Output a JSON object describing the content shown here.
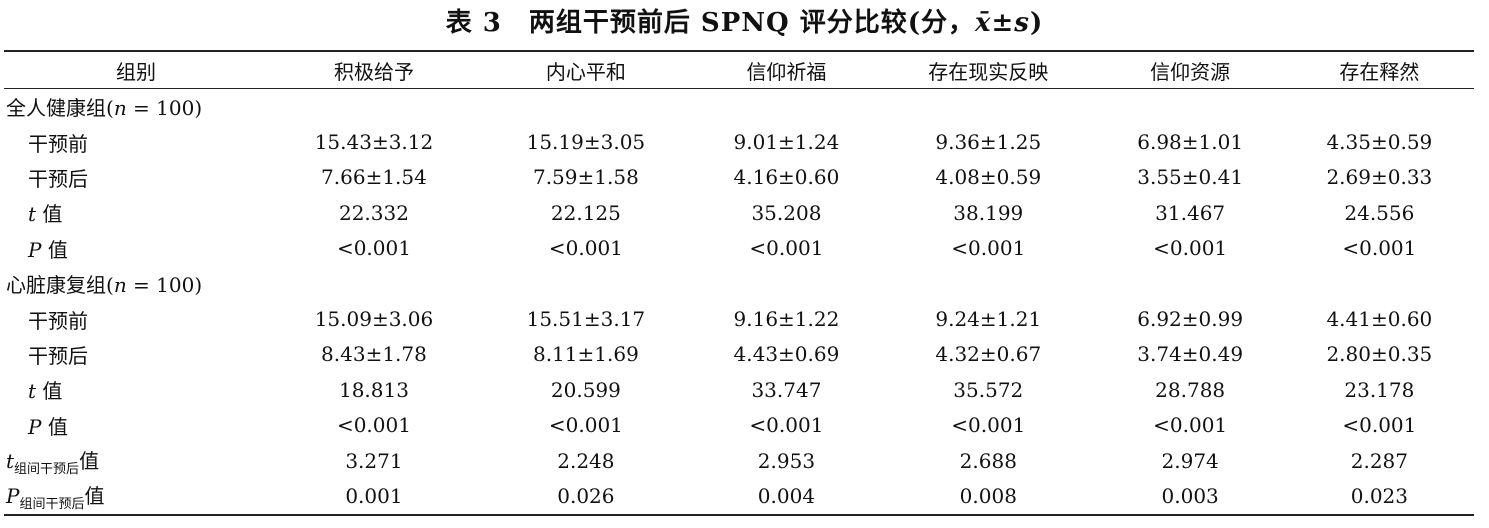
{
  "title": {
    "prefix": "表 3　两组干预前后 SPNQ 评分比较(分，",
    "stat": "x̄±s",
    "suffix": ")"
  },
  "columns": [
    "组别",
    "积极给予",
    "内心平和",
    "信仰祈福",
    "存在现实反映",
    "信仰资源",
    "存在释然"
  ],
  "groups": [
    {
      "label": "全人健康组(",
      "n_label": "n",
      "n_value": " = 100)",
      "rows": [
        {
          "label": "干预前",
          "italic": "",
          "values": [
            "15.43±3.12",
            "15.19±3.05",
            "9.01±1.24",
            "9.36±1.25",
            "6.98±1.01",
            "4.35±0.59"
          ]
        },
        {
          "label": "干预后",
          "italic": "",
          "values": [
            "7.66±1.54",
            "7.59±1.58",
            "4.16±0.60",
            "4.08±0.59",
            "3.55±0.41",
            "2.69±0.33"
          ]
        },
        {
          "label": " 值",
          "italic": "t",
          "values": [
            "22.332",
            "22.125",
            "35.208",
            "38.199",
            "31.467",
            "24.556"
          ]
        },
        {
          "label": " 值",
          "italic": "P",
          "values": [
            "<0.001",
            "<0.001",
            "<0.001",
            "<0.001",
            "<0.001",
            "<0.001"
          ]
        }
      ]
    },
    {
      "label": "心脏康复组(",
      "n_label": "n",
      "n_value": " = 100)",
      "rows": [
        {
          "label": "干预前",
          "italic": "",
          "values": [
            "15.09±3.06",
            "15.51±3.17",
            "9.16±1.22",
            "9.24±1.21",
            "6.92±0.99",
            "4.41±0.60"
          ]
        },
        {
          "label": "干预后",
          "italic": "",
          "values": [
            "8.43±1.78",
            "8.11±1.69",
            "4.43±0.69",
            "4.32±0.67",
            "3.74±0.49",
            "2.80±0.35"
          ]
        },
        {
          "label": " 值",
          "italic": "t",
          "values": [
            "18.813",
            "20.599",
            "33.747",
            "35.572",
            "28.788",
            "23.178"
          ]
        },
        {
          "label": " 值",
          "italic": "P",
          "values": [
            "<0.001",
            "<0.001",
            "<0.001",
            "<0.001",
            "<0.001",
            "<0.001"
          ]
        }
      ]
    }
  ],
  "between": [
    {
      "sym": "t",
      "sub": "组间干预后",
      "suffix": "值",
      "values": [
        "3.271",
        "2.248",
        "2.953",
        "2.688",
        "2.974",
        "2.287"
      ]
    },
    {
      "sym": "P",
      "sub": "组间干预后",
      "suffix": "值",
      "values": [
        "0.001",
        "0.026",
        "0.004",
        "0.008",
        "0.003",
        "0.023"
      ]
    }
  ]
}
